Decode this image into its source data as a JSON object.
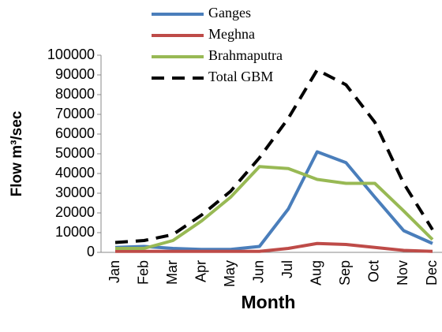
{
  "chart_data": {
    "type": "line",
    "x_label": "Month",
    "y_label": "Flow m³/sec",
    "categories": [
      "Jan",
      "Feb",
      "Mar",
      "Apr",
      "May",
      "Jun",
      "Jul",
      "Aug",
      "Sep",
      "Oct",
      "Nov",
      "Dec"
    ],
    "series": [
      {
        "name": "Ganges",
        "color": "#4a7ebb",
        "dashed": false,
        "values": [
          2500,
          3000,
          2000,
          1500,
          1500,
          3000,
          22000,
          51000,
          45500,
          28000,
          11000,
          4500
        ]
      },
      {
        "name": "Meghna",
        "color": "#be4b48",
        "dashed": false,
        "values": [
          500,
          500,
          500,
          500,
          500,
          500,
          2000,
          4500,
          4000,
          2500,
          1000,
          500
        ]
      },
      {
        "name": "Brahmaputra",
        "color": "#98b954",
        "dashed": false,
        "values": [
          2000,
          2000,
          6000,
          16000,
          28000,
          43500,
          42500,
          37000,
          35000,
          35000,
          21000,
          6500
        ]
      },
      {
        "name": "Total GBM",
        "color": "#000000",
        "dashed": true,
        "values": [
          5000,
          6000,
          9000,
          19000,
          31000,
          48000,
          68000,
          92500,
          85000,
          66000,
          35000,
          11500
        ]
      }
    ],
    "ylim": [
      0,
      100000
    ],
    "yticks": [
      0,
      10000,
      20000,
      30000,
      40000,
      50000,
      60000,
      70000,
      80000,
      90000,
      100000
    ],
    "grid": false,
    "legend": "top"
  }
}
